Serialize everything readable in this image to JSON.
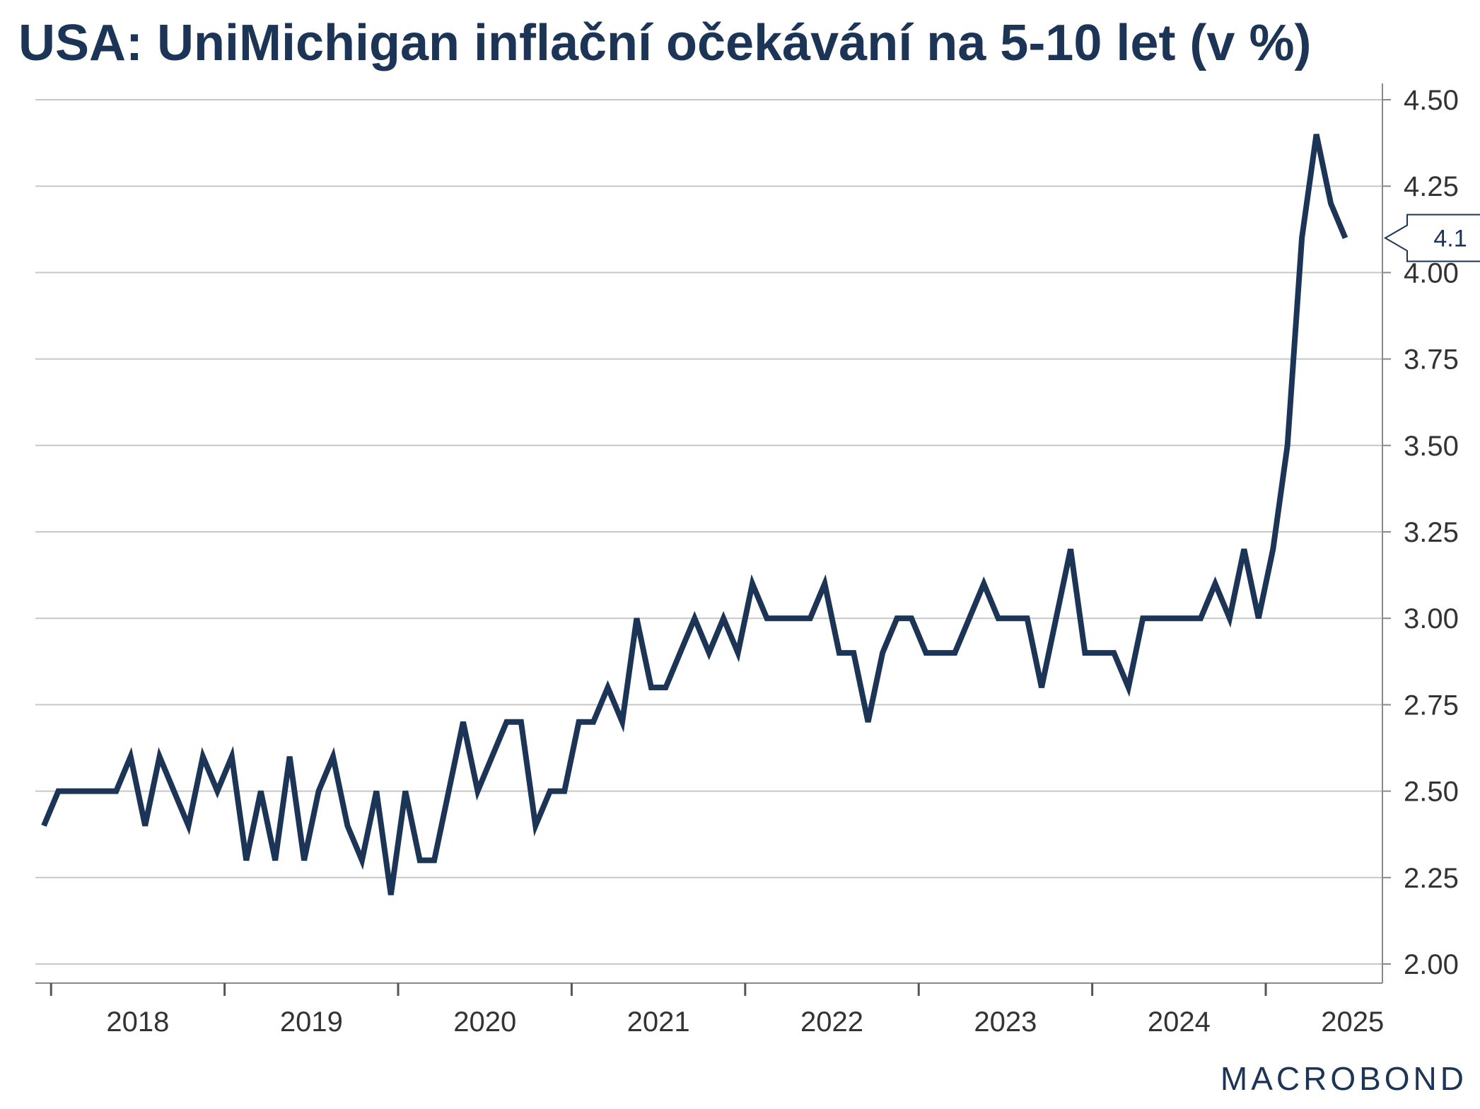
{
  "chart_data": {
    "type": "line",
    "title": "USA: UniMichigan inflační očekávání na 5-10 let (v %)",
    "xlabel": "",
    "ylabel": "",
    "x_start": "2017-12",
    "x_step": "month",
    "x_ticks": [
      "2018",
      "2019",
      "2020",
      "2021",
      "2022",
      "2023",
      "2024",
      "2025"
    ],
    "ylim": [
      2.0,
      4.5
    ],
    "yticks": [
      "2.00",
      "2.25",
      "2.50",
      "2.75",
      "3.00",
      "3.25",
      "3.50",
      "3.75",
      "4.00",
      "4.25",
      "4.50"
    ],
    "y_axis_position": "right",
    "grid": true,
    "series": [
      {
        "color": "#1c3557",
        "last_value_label": "4.1",
        "values": [
          2.4,
          2.5,
          2.5,
          2.5,
          2.5,
          2.5,
          2.6,
          2.4,
          2.6,
          2.5,
          2.4,
          2.6,
          2.5,
          2.6,
          2.3,
          2.5,
          2.3,
          2.6,
          2.3,
          2.5,
          2.6,
          2.4,
          2.3,
          2.5,
          2.2,
          2.5,
          2.3,
          2.3,
          2.5,
          2.7,
          2.5,
          2.6,
          2.7,
          2.7,
          2.4,
          2.5,
          2.5,
          2.7,
          2.7,
          2.8,
          2.7,
          3.0,
          2.8,
          2.8,
          2.9,
          3.0,
          2.9,
          3.0,
          2.9,
          3.1,
          3.0,
          3.0,
          3.0,
          3.0,
          3.1,
          2.9,
          2.9,
          2.7,
          2.9,
          3.0,
          3.0,
          2.9,
          2.9,
          2.9,
          3.0,
          3.1,
          3.0,
          3.0,
          3.0,
          2.8,
          3.0,
          3.2,
          2.9,
          2.9,
          2.9,
          2.8,
          3.0,
          3.0,
          3.0,
          3.0,
          3.0,
          3.1,
          3.0,
          3.2,
          3.0,
          3.2,
          3.5,
          4.1,
          4.4,
          4.2,
          4.1
        ]
      }
    ]
  },
  "branding": {
    "logo_text": "MACROBOND"
  }
}
